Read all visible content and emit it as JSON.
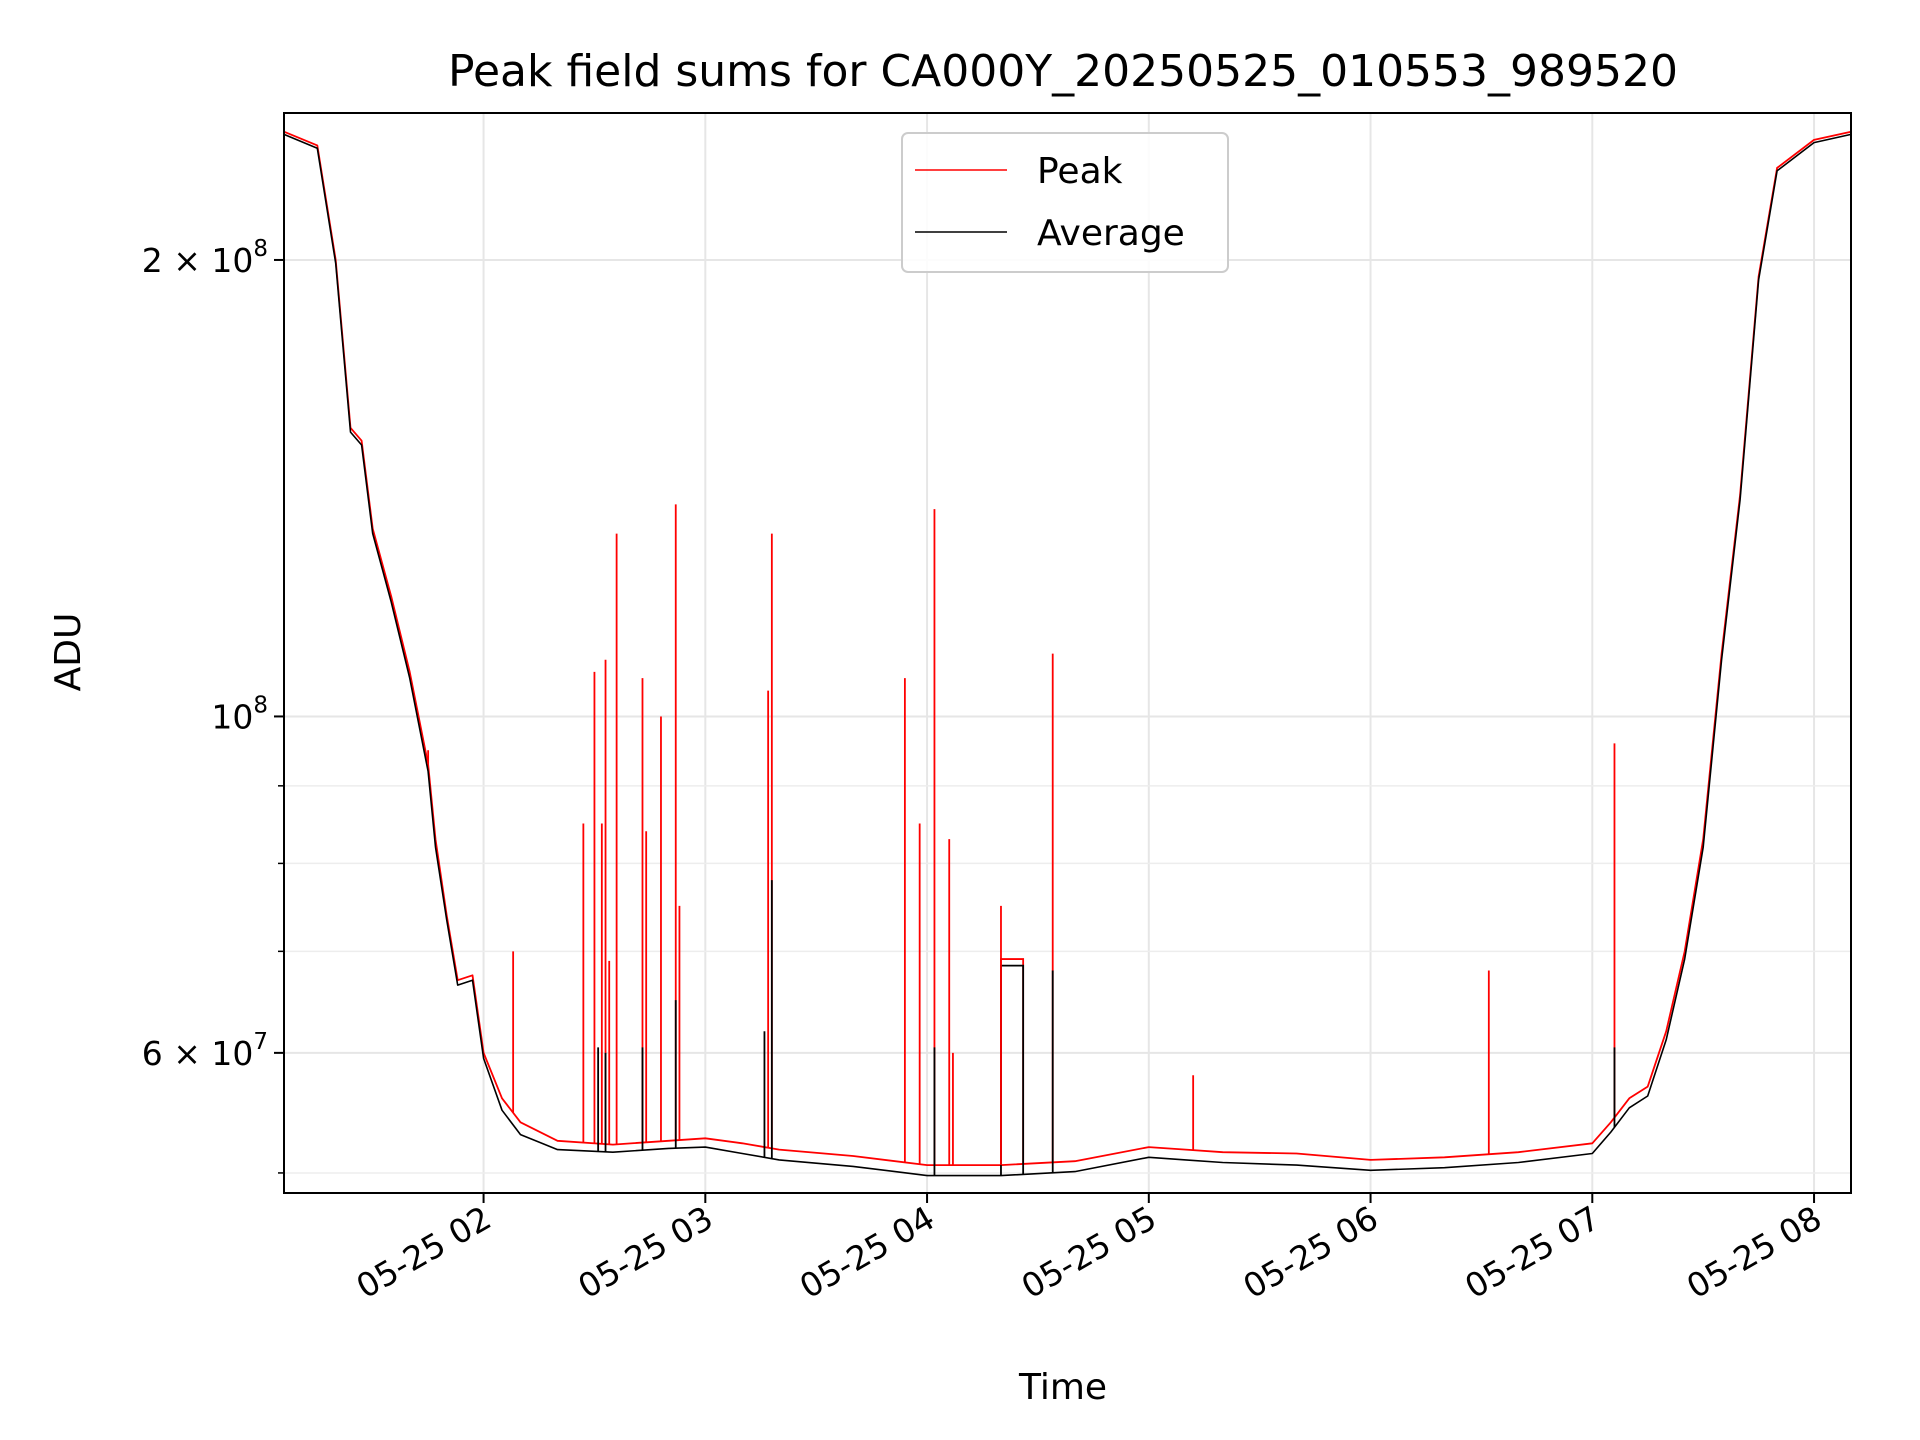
{
  "chart_data": {
    "type": "line",
    "title": "Peak field sums for CA000Y_20250525_010553_989520",
    "xlabel": "Time",
    "ylabel": "ADU",
    "y_scale": "log",
    "ylim": [
      48500000,
      250000000
    ],
    "xlim": [
      "2025-05-25T01:06:00",
      "2025-05-25T08:10:00"
    ],
    "x_ticks": [
      "05-25 02",
      "05-25 03",
      "05-25 04",
      "05-25 05",
      "05-25 06",
      "05-25 07",
      "05-25 08"
    ],
    "x_tick_values": [
      "2025-05-25T02:00:00",
      "2025-05-25T03:00:00",
      "2025-05-25T04:00:00",
      "2025-05-25T05:00:00",
      "2025-05-25T06:00:00",
      "2025-05-25T07:00:00",
      "2025-05-25T08:00:00"
    ],
    "y_ticks": [
      {
        "value": 200000000,
        "base": "2 × 10",
        "exp": "8"
      },
      {
        "value": 100000000,
        "base": "10",
        "exp": "8"
      },
      {
        "value": 60000000,
        "base": "6 × 10",
        "exp": "7"
      }
    ],
    "y_minor_ticks": [
      50000000,
      70000000,
      80000000,
      90000000
    ],
    "grid": true,
    "legend": "upper center",
    "series": [
      {
        "name": "Peak",
        "color": "#ff0000",
        "points": [
          [
            "2025-05-25T01:06:00",
            243000000
          ],
          [
            "2025-05-25T01:15:00",
            238000000
          ],
          [
            "2025-05-25T01:20:00",
            200000000
          ],
          [
            "2025-05-25T01:24:00",
            155000000
          ],
          [
            "2025-05-25T01:27:00",
            152000000
          ],
          [
            "2025-05-25T01:30:00",
            133000000
          ],
          [
            "2025-05-25T01:35:00",
            120000000
          ],
          [
            "2025-05-25T01:40:00",
            107000000
          ],
          [
            "2025-05-25T01:45:00",
            93000000
          ],
          [
            "2025-05-25T01:47:00",
            83000000
          ],
          [
            "2025-05-25T01:50:00",
            74000000
          ],
          [
            "2025-05-25T01:53:00",
            67000000
          ],
          [
            "2025-05-25T01:57:00",
            67500000
          ],
          [
            "2025-05-25T02:00:00",
            60000000
          ],
          [
            "2025-05-25T02:05:00",
            56000000
          ],
          [
            "2025-05-25T02:10:00",
            54000000
          ],
          [
            "2025-05-25T02:20:00",
            52500000
          ],
          [
            "2025-05-25T02:35:00",
            52200000
          ],
          [
            "2025-05-25T02:50:00",
            52500000
          ],
          [
            "2025-05-25T03:00:00",
            52700000
          ],
          [
            "2025-05-25T03:10:00",
            52300000
          ],
          [
            "2025-05-25T03:20:00",
            51800000
          ],
          [
            "2025-05-25T03:40:00",
            51300000
          ],
          [
            "2025-05-25T04:00:00",
            50600000
          ],
          [
            "2025-05-25T04:20:00",
            50600000
          ],
          [
            "2025-05-25T04:40:00",
            50900000
          ],
          [
            "2025-05-25T05:00:00",
            52000000
          ],
          [
            "2025-05-25T05:10:00",
            51800000
          ],
          [
            "2025-05-25T05:20:00",
            51600000
          ],
          [
            "2025-05-25T05:40:00",
            51500000
          ],
          [
            "2025-05-25T06:00:00",
            51000000
          ],
          [
            "2025-05-25T06:20:00",
            51200000
          ],
          [
            "2025-05-25T06:40:00",
            51600000
          ],
          [
            "2025-05-25T07:00:00",
            52300000
          ],
          [
            "2025-05-25T07:05:00",
            54000000
          ],
          [
            "2025-05-25T07:10:00",
            56000000
          ],
          [
            "2025-05-25T07:15:00",
            57000000
          ],
          [
            "2025-05-25T07:20:00",
            62000000
          ],
          [
            "2025-05-25T07:25:00",
            70000000
          ],
          [
            "2025-05-25T07:30:00",
            83000000
          ],
          [
            "2025-05-25T07:35:00",
            110000000
          ],
          [
            "2025-05-25T07:40:00",
            140000000
          ],
          [
            "2025-05-25T07:45:00",
            195000000
          ],
          [
            "2025-05-25T07:50:00",
            230000000
          ],
          [
            "2025-05-25T08:00:00",
            240000000
          ],
          [
            "2025-05-25T08:10:00",
            243000000
          ]
        ]
      },
      {
        "name": "Average",
        "color": "#000000",
        "points": [
          [
            "2025-05-25T01:06:00",
            242000000
          ],
          [
            "2025-05-25T01:15:00",
            237000000
          ],
          [
            "2025-05-25T01:20:00",
            199000000
          ],
          [
            "2025-05-25T01:24:00",
            154000000
          ],
          [
            "2025-05-25T01:27:00",
            151000000
          ],
          [
            "2025-05-25T01:30:00",
            132000000
          ],
          [
            "2025-05-25T01:35:00",
            119000000
          ],
          [
            "2025-05-25T01:40:00",
            106000000
          ],
          [
            "2025-05-25T01:45:00",
            92000000
          ],
          [
            "2025-05-25T01:47:00",
            82000000
          ],
          [
            "2025-05-25T01:50:00",
            73500000
          ],
          [
            "2025-05-25T01:53:00",
            66500000
          ],
          [
            "2025-05-25T01:57:00",
            67000000
          ],
          [
            "2025-05-25T02:00:00",
            59500000
          ],
          [
            "2025-05-25T02:05:00",
            55000000
          ],
          [
            "2025-05-25T02:10:00",
            53000000
          ],
          [
            "2025-05-25T02:20:00",
            51800000
          ],
          [
            "2025-05-25T02:35:00",
            51600000
          ],
          [
            "2025-05-25T02:50:00",
            51900000
          ],
          [
            "2025-05-25T03:00:00",
            52000000
          ],
          [
            "2025-05-25T03:10:00",
            51500000
          ],
          [
            "2025-05-25T03:20:00",
            51000000
          ],
          [
            "2025-05-25T03:40:00",
            50500000
          ],
          [
            "2025-05-25T04:00:00",
            49800000
          ],
          [
            "2025-05-25T04:20:00",
            49800000
          ],
          [
            "2025-05-25T04:40:00",
            50100000
          ],
          [
            "2025-05-25T05:00:00",
            51200000
          ],
          [
            "2025-05-25T05:10:00",
            51000000
          ],
          [
            "2025-05-25T05:20:00",
            50800000
          ],
          [
            "2025-05-25T05:40:00",
            50600000
          ],
          [
            "2025-05-25T06:00:00",
            50200000
          ],
          [
            "2025-05-25T06:20:00",
            50400000
          ],
          [
            "2025-05-25T06:40:00",
            50800000
          ],
          [
            "2025-05-25T07:00:00",
            51500000
          ],
          [
            "2025-05-25T07:05:00",
            53200000
          ],
          [
            "2025-05-25T07:10:00",
            55200000
          ],
          [
            "2025-05-25T07:15:00",
            56200000
          ],
          [
            "2025-05-25T07:20:00",
            61200000
          ],
          [
            "2025-05-25T07:25:00",
            69200000
          ],
          [
            "2025-05-25T07:30:00",
            82000000
          ],
          [
            "2025-05-25T07:35:00",
            109000000
          ],
          [
            "2025-05-25T07:40:00",
            139000000
          ],
          [
            "2025-05-25T07:45:00",
            194000000
          ],
          [
            "2025-05-25T07:50:00",
            229000000
          ],
          [
            "2025-05-25T08:00:00",
            239000000
          ],
          [
            "2025-05-25T08:10:00",
            242000000
          ]
        ]
      }
    ],
    "peak_spikes": [
      [
        "2025-05-25T01:45:00",
        95000000
      ],
      [
        "2025-05-25T02:08:00",
        70000000
      ],
      [
        "2025-05-25T02:27:00",
        85000000
      ],
      [
        "2025-05-25T02:30:00",
        107000000
      ],
      [
        "2025-05-25T02:32:00",
        85000000
      ],
      [
        "2025-05-25T02:33:00",
        109000000
      ],
      [
        "2025-05-25T02:34:00",
        69000000
      ],
      [
        "2025-05-25T02:36:00",
        132000000
      ],
      [
        "2025-05-25T02:43:00",
        106000000
      ],
      [
        "2025-05-25T02:44:00",
        84000000
      ],
      [
        "2025-05-25T02:48:00",
        100000000
      ],
      [
        "2025-05-25T02:52:00",
        138000000
      ],
      [
        "2025-05-25T02:53:00",
        75000000
      ],
      [
        "2025-05-25T03:17:00",
        104000000
      ],
      [
        "2025-05-25T03:18:00",
        132000000
      ],
      [
        "2025-05-25T03:54:00",
        106000000
      ],
      [
        "2025-05-25T03:58:00",
        85000000
      ],
      [
        "2025-05-25T04:02:00",
        137000000
      ],
      [
        "2025-05-25T04:06:00",
        83000000
      ],
      [
        "2025-05-25T04:07:00",
        60000000
      ],
      [
        "2025-05-25T04:20:00",
        75000000
      ],
      [
        "2025-05-25T04:34:00",
        110000000
      ],
      [
        "2025-05-25T05:12:00",
        58000000
      ],
      [
        "2025-05-25T06:32:00",
        68000000
      ],
      [
        "2025-05-25T07:06:00",
        96000000
      ]
    ],
    "average_spikes": [
      [
        "2025-05-25T02:31:00",
        60500000
      ],
      [
        "2025-05-25T02:33:00",
        60000000
      ],
      [
        "2025-05-25T02:43:00",
        60500000
      ],
      [
        "2025-05-25T02:52:00",
        65000000
      ],
      [
        "2025-05-25T03:16:00",
        62000000
      ],
      [
        "2025-05-25T03:18:00",
        78000000
      ],
      [
        "2025-05-25T04:02:00",
        60500000
      ],
      [
        "2025-05-25T04:34:00",
        68000000
      ],
      [
        "2025-05-25T07:06:00",
        60500000
      ]
    ],
    "plateau": {
      "start": "2025-05-25T04:20:00",
      "end": "2025-05-25T04:26:00",
      "value": 68500000
    }
  }
}
